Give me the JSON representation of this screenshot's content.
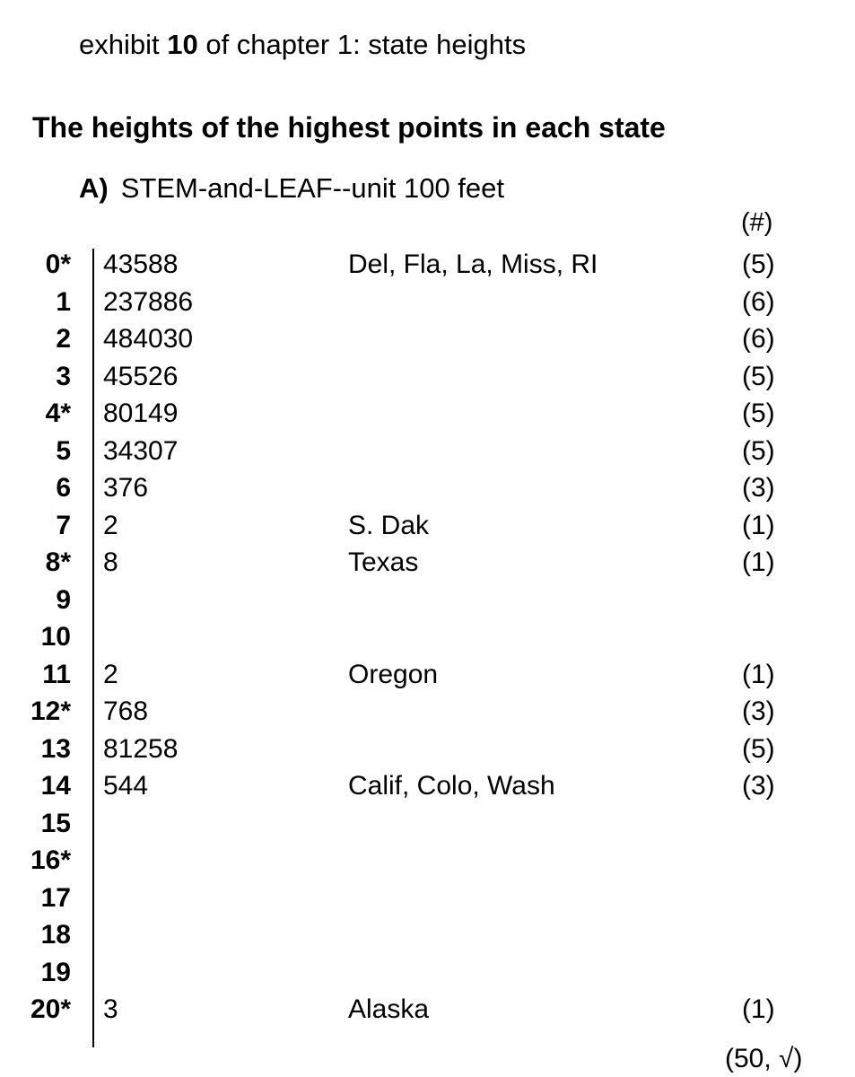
{
  "header": {
    "prefix": "exhibit",
    "number": "10",
    "suffix": "of chapter 1: state heights"
  },
  "title": "The heights of the highest points in each state",
  "section": {
    "mark": "A)",
    "label": "STEM-and-LEAF--unit 100 feet"
  },
  "count_header": "(#)",
  "rows": [
    {
      "stem": "0*",
      "leaves": "43588",
      "states": "Del, Fla, La, Miss, RI",
      "count": "(5)"
    },
    {
      "stem": "1",
      "leaves": "237886",
      "states": "",
      "count": "(6)"
    },
    {
      "stem": "2",
      "leaves": "484030",
      "states": "",
      "count": "(6)"
    },
    {
      "stem": "3",
      "leaves": "45526",
      "states": "",
      "count": "(5)"
    },
    {
      "stem": "4*",
      "leaves": "80149",
      "states": "",
      "count": "(5)"
    },
    {
      "stem": "5",
      "leaves": "34307",
      "states": "",
      "count": "(5)"
    },
    {
      "stem": "6",
      "leaves": "376",
      "states": "",
      "count": "(3)"
    },
    {
      "stem": "7",
      "leaves": "2",
      "states": "S. Dak",
      "count": "(1)"
    },
    {
      "stem": "8*",
      "leaves": "8",
      "states": "Texas",
      "count": "(1)"
    },
    {
      "stem": "9",
      "leaves": "",
      "states": "",
      "count": ""
    },
    {
      "stem": "10",
      "leaves": "",
      "states": "",
      "count": ""
    },
    {
      "stem": "11",
      "leaves": "2",
      "states": "Oregon",
      "count": "(1)"
    },
    {
      "stem": "12*",
      "leaves": "768",
      "states": "",
      "count": "(3)"
    },
    {
      "stem": "13",
      "leaves": "81258",
      "states": "",
      "count": "(5)"
    },
    {
      "stem": "14",
      "leaves": "544",
      "states": "Calif, Colo, Wash",
      "count": "(3)"
    },
    {
      "stem": "15",
      "leaves": "",
      "states": "",
      "count": ""
    },
    {
      "stem": "16*",
      "leaves": "",
      "states": "",
      "count": ""
    },
    {
      "stem": "17",
      "leaves": "",
      "states": "",
      "count": ""
    },
    {
      "stem": "18",
      "leaves": "",
      "states": "",
      "count": ""
    },
    {
      "stem": "19",
      "leaves": "",
      "states": "",
      "count": ""
    },
    {
      "stem": "20*",
      "leaves": "3",
      "states": "Alaska",
      "count": "(1)"
    }
  ],
  "total": "(50, √)"
}
